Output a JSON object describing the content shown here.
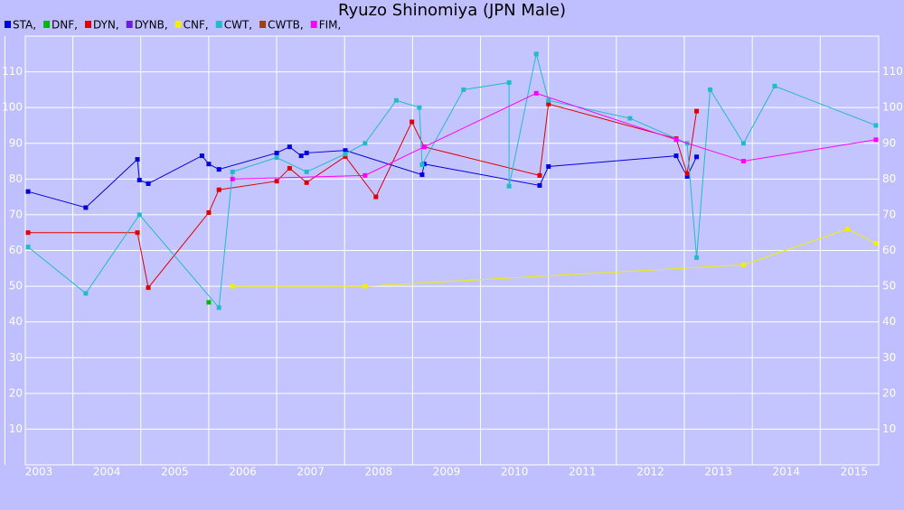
{
  "chart_data": {
    "type": "line",
    "title": "Ryuzo Shinomiya (JPN Male)",
    "xlim": [
      2002.8,
      2015.36
    ],
    "xticks": [
      2003,
      2004,
      2005,
      2006,
      2007,
      2008,
      2009,
      2010,
      2011,
      2012,
      2013,
      2014,
      2015
    ],
    "ylim": [
      0,
      120
    ],
    "yticks": [
      10,
      20,
      30,
      40,
      50,
      60,
      70,
      80,
      90,
      100,
      110
    ],
    "grid": true,
    "series": [
      {
        "name": "STA,",
        "color": "#0000dd",
        "x": [
          2002.84,
          2003.69,
          2004.45,
          2004.48,
          2004.61,
          2005.4,
          2005.5,
          2005.65,
          2006.5,
          2006.69,
          2006.86,
          2006.94,
          2007.51,
          2008.64,
          2008.67,
          2010.37,
          2010.5,
          2012.38,
          2012.54,
          2012.68
        ],
        "values": [
          76.5,
          72,
          85.5,
          79.7,
          78.7,
          86.5,
          84.2,
          82.7,
          87.3,
          89,
          86.5,
          87.3,
          88,
          81.2,
          84.2,
          78.2,
          83.5,
          86.5,
          80.7,
          86.2
        ]
      },
      {
        "name": "DNF,",
        "color": "#00bb00",
        "x": [
          2005.5
        ],
        "values": [
          45.5
        ]
      },
      {
        "name": "DYN,",
        "color": "#e00000",
        "x": [
          2002.84,
          2004.45,
          2004.61,
          2005.5,
          2005.65,
          2006.5,
          2006.69,
          2006.94,
          2007.51,
          2007.96,
          2008.49,
          2008.67,
          2010.37,
          2010.5,
          2012.38,
          2012.54,
          2012.68
        ],
        "values": [
          65,
          65,
          49.6,
          70.6,
          77,
          79.4,
          83,
          79,
          86.3,
          75,
          96,
          89,
          81,
          101,
          91.3,
          81.5,
          99
        ]
      },
      {
        "name": "DYNB,",
        "color": "#6a1fe0",
        "x": [],
        "values": []
      },
      {
        "name": "CNF,",
        "color": "#f0f000",
        "x": [
          2005.85,
          2007.8,
          2013.37,
          2014.9,
          2015.32
        ],
        "values": [
          50,
          50,
          56,
          66,
          62
        ]
      },
      {
        "name": "CWT,",
        "color": "#22bbcc",
        "x": [
          2002.84,
          2003.69,
          2004.48,
          2005.65,
          2005.85,
          2006.5,
          2006.94,
          2007.51,
          2007.8,
          2008.26,
          2008.6,
          2008.64,
          2009.25,
          2009.92,
          2009.92,
          2010.32,
          2010.5,
          2011.7,
          2012.54,
          2012.68,
          2012.88,
          2013.37,
          2013.83,
          2015.32
        ],
        "values": [
          61,
          48,
          70,
          44,
          82,
          86,
          82,
          87,
          90,
          102,
          100,
          84,
          105,
          107,
          78,
          115,
          102,
          97,
          90,
          58,
          105,
          90,
          106,
          95
        ]
      },
      {
        "name": "CWTB,",
        "color": "#a04010",
        "x": [],
        "values": []
      },
      {
        "name": "FIM,",
        "color": "#ff00ff",
        "x": [
          2005.85,
          2007.8,
          2008.67,
          2010.32,
          2012.38,
          2013.37,
          2015.32
        ],
        "values": [
          80,
          81,
          89,
          104,
          91,
          85,
          91
        ]
      }
    ]
  }
}
